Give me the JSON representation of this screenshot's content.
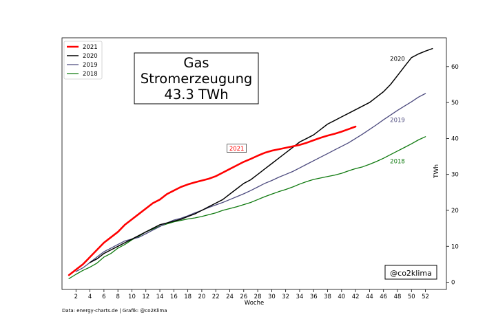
{
  "chart_data": {
    "type": "line",
    "title_lines": [
      "Gas",
      "Stromerzeugung",
      "43.3 TWh"
    ],
    "xlabel": "Woche",
    "ylabel": "TWh",
    "xlim": [
      0,
      55
    ],
    "ylim": [
      -2,
      68
    ],
    "xticks": [
      2,
      4,
      6,
      8,
      10,
      12,
      14,
      16,
      18,
      20,
      22,
      24,
      26,
      28,
      30,
      32,
      34,
      36,
      38,
      40,
      42,
      44,
      46,
      48,
      50,
      52
    ],
    "yticks": [
      0,
      10,
      20,
      30,
      40,
      50,
      60
    ],
    "y_axis_side": "right",
    "grid": false,
    "legend_position": "top-left",
    "watermark": "@co2klima",
    "footer": "Data: energy-charts.de | Grafik: @co2Klima",
    "series": [
      {
        "name": "2021",
        "color": "#ff0000",
        "width": 2.6,
        "show_in_legend": true,
        "inline_label": "2021",
        "inline_label_boxed": true,
        "inline_label_x": 25,
        "inline_label_y": 37,
        "x": [
          1,
          2,
          3,
          4,
          5,
          6,
          7,
          8,
          9,
          10,
          11,
          12,
          13,
          14,
          15,
          16,
          17,
          18,
          19,
          20,
          21,
          22,
          23,
          24,
          25,
          26,
          27,
          28,
          29,
          30,
          31,
          32,
          33,
          34,
          35,
          36,
          37,
          38,
          39,
          40,
          41,
          42
        ],
        "y": [
          2,
          3.5,
          5,
          7,
          9,
          11,
          12.5,
          14,
          16,
          17.5,
          19,
          20.5,
          22,
          23,
          24.5,
          25.5,
          26.5,
          27.2,
          27.8,
          28.3,
          28.8,
          29.5,
          30.5,
          31.5,
          32.5,
          33.5,
          34.3,
          35.2,
          36,
          36.6,
          37,
          37.4,
          37.8,
          38.2,
          38.8,
          39.5,
          40.2,
          40.8,
          41.3,
          41.9,
          42.6,
          43.3
        ]
      },
      {
        "name": "2020",
        "color": "#000000",
        "width": 1.5,
        "show_in_legend": true,
        "inline_label": "2020",
        "inline_label_boxed": false,
        "inline_label_x": 48,
        "inline_label_y": 62,
        "x": [
          4,
          5,
          6,
          7,
          8,
          9,
          10,
          11,
          12,
          13,
          14,
          15,
          16,
          17,
          18,
          19,
          20,
          21,
          22,
          23,
          24,
          25,
          26,
          27,
          28,
          29,
          30,
          31,
          32,
          33,
          34,
          35,
          36,
          37,
          38,
          39,
          40,
          41,
          42,
          43,
          44,
          45,
          46,
          47,
          48,
          49,
          50,
          51,
          52,
          53
        ],
        "y": [
          5.5,
          6.5,
          8,
          9,
          10,
          11,
          12,
          13,
          14,
          15,
          16,
          16.5,
          17,
          17.5,
          18.3,
          19,
          20,
          21,
          22,
          23,
          24.5,
          26,
          27.5,
          28.5,
          30,
          31.5,
          33,
          34.5,
          36,
          37.5,
          39,
          40,
          41,
          42.5,
          44,
          45,
          46,
          47,
          48,
          49,
          50,
          51.5,
          53,
          55,
          57.5,
          60,
          62.5,
          63.5,
          64.3,
          65
        ]
      },
      {
        "name": "2019",
        "color": "#4c4a7e",
        "width": 1.3,
        "show_in_legend": true,
        "inline_label": "2019",
        "inline_label_boxed": false,
        "inline_label_x": 48,
        "inline_label_y": 45,
        "x": [
          2,
          3,
          4,
          5,
          6,
          7,
          8,
          9,
          10,
          11,
          12,
          13,
          14,
          15,
          16,
          17,
          18,
          19,
          20,
          21,
          22,
          23,
          24,
          25,
          26,
          27,
          28,
          29,
          30,
          31,
          32,
          33,
          34,
          35,
          36,
          37,
          38,
          39,
          40,
          41,
          42,
          43,
          44,
          45,
          46,
          47,
          48,
          49,
          50,
          51,
          52
        ],
        "y": [
          3,
          4,
          5.5,
          7,
          8.5,
          9.5,
          10.5,
          11.5,
          12,
          12.5,
          13.5,
          14.5,
          15.5,
          16.5,
          17.3,
          17.8,
          18.5,
          19.3,
          20,
          20.8,
          21.5,
          22.2,
          23,
          23.8,
          24.6,
          25.5,
          26.5,
          27.5,
          28.3,
          29.2,
          30,
          30.8,
          31.8,
          32.8,
          33.8,
          34.8,
          35.8,
          36.8,
          37.8,
          38.8,
          40,
          41.2,
          42.5,
          43.8,
          45.2,
          46.5,
          47.8,
          49,
          50.2,
          51.5,
          52.5
        ]
      },
      {
        "name": "2018",
        "color": "#0f7a0f",
        "width": 1.3,
        "show_in_legend": true,
        "inline_label": "2018",
        "inline_label_boxed": false,
        "inline_label_x": 48,
        "inline_label_y": 33.5,
        "x": [
          1,
          2,
          3,
          4,
          5,
          6,
          7,
          8,
          9,
          10,
          11,
          12,
          13,
          14,
          15,
          16,
          17,
          18,
          19,
          20,
          21,
          22,
          23,
          24,
          25,
          26,
          27,
          28,
          29,
          30,
          31,
          32,
          33,
          34,
          35,
          36,
          37,
          38,
          39,
          40,
          41,
          42,
          43,
          44,
          45,
          46,
          47,
          48,
          49,
          50,
          51,
          52
        ],
        "y": [
          1,
          2.2,
          3.3,
          4.2,
          5.3,
          7,
          8,
          9.5,
          10.5,
          11.8,
          12.8,
          14,
          14.8,
          15.6,
          16.2,
          16.8,
          17.2,
          17.6,
          17.9,
          18.3,
          18.8,
          19.3,
          20,
          20.5,
          21,
          21.6,
          22.2,
          23,
          23.8,
          24.5,
          25.2,
          25.8,
          26.5,
          27.3,
          28,
          28.6,
          29,
          29.4,
          29.8,
          30.3,
          31,
          31.6,
          32.1,
          32.8,
          33.6,
          34.5,
          35.5,
          36.5,
          37.5,
          38.5,
          39.6,
          40.5
        ]
      }
    ]
  }
}
